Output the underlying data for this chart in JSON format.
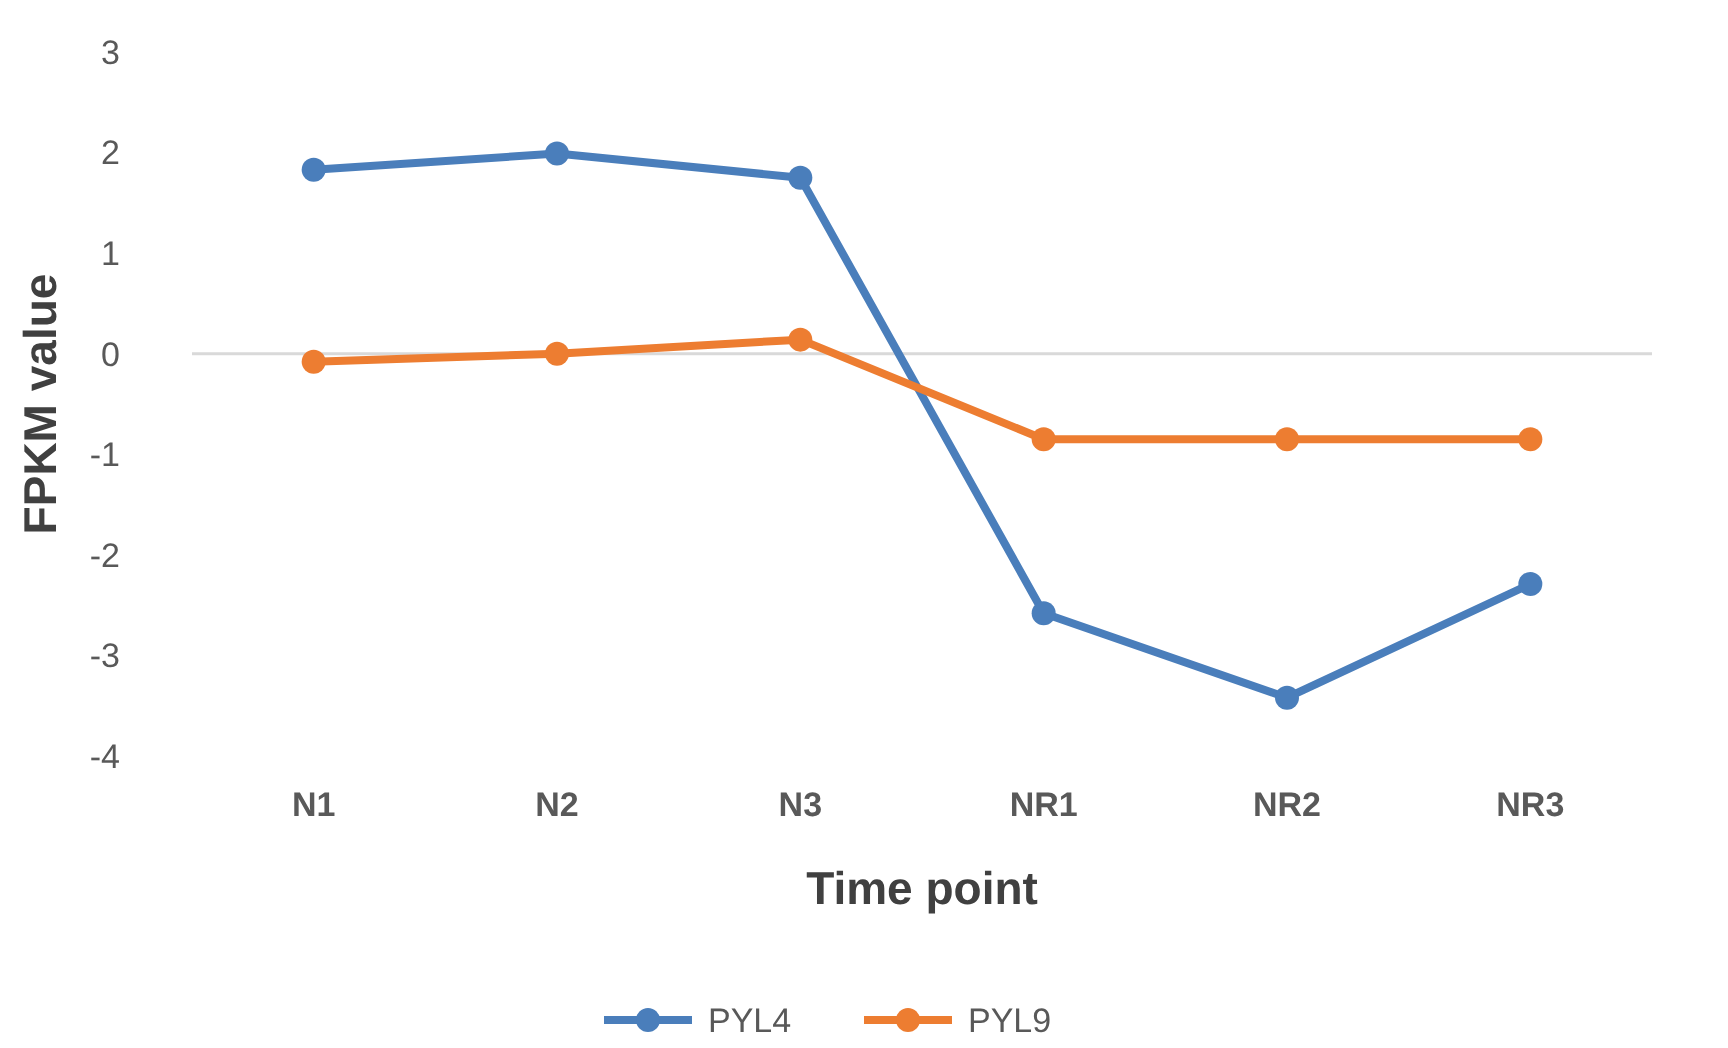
{
  "chart_data": {
    "type": "line",
    "xlabel": "Time point",
    "ylabel": "FPKM value",
    "categories": [
      "N1",
      "N2",
      "N3",
      "NR1",
      "NR2",
      "NR3"
    ],
    "series": [
      {
        "name": "PYL4",
        "color": "#4a7ebb",
        "values": [
          1.83,
          1.99,
          1.75,
          -2.58,
          -3.42,
          -2.29
        ]
      },
      {
        "name": "PYL9",
        "color": "#ed7d31",
        "values": [
          -0.08,
          0,
          0.14,
          -0.85,
          -0.85,
          -0.85
        ]
      }
    ],
    "ylim": [
      -4,
      3
    ],
    "yticks": [
      -4,
      -3,
      -2,
      -1,
      0,
      1,
      2,
      3
    ],
    "grid": false,
    "ref_lines": [
      {
        "axis": "y",
        "value": 0,
        "color": "#d9d9d9"
      }
    ],
    "legend": "bottom",
    "marker": "circle",
    "line_style": "solid"
  }
}
